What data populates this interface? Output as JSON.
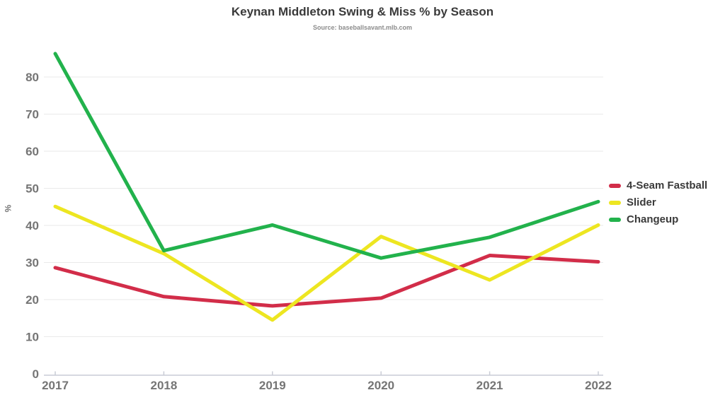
{
  "chart_data": {
    "type": "line",
    "title": "Keynan Middleton Swing & Miss % by Season",
    "subtitle": "Source: baseballsavant.mlb.com",
    "xlabel": "",
    "ylabel": "%",
    "categories": [
      "2017",
      "2018",
      "2019",
      "2020",
      "2021",
      "2022"
    ],
    "series": [
      {
        "name": "4-Seam Fastball",
        "color": "#d22d49",
        "values": [
          28.6,
          20.8,
          18.3,
          20.4,
          31.9,
          30.2
        ]
      },
      {
        "name": "Slider",
        "color": "#ede621",
        "values": [
          45.1,
          32.4,
          14.5,
          37.0,
          25.3,
          40.1
        ]
      },
      {
        "name": "Changeup",
        "color": "#22b24c",
        "values": [
          86.3,
          33.2,
          40.1,
          31.2,
          36.8,
          46.4
        ]
      }
    ],
    "yticks": [
      0,
      10,
      20,
      30,
      40,
      50,
      60,
      70,
      80
    ],
    "ylim": [
      0,
      90
    ],
    "grid": true,
    "legend_position": "right",
    "line_width": 5
  },
  "colors": {
    "gridline": "#e9e9e9",
    "axis_line": "#c9ccd6",
    "tick_mark": "#c9ccd6",
    "tick_text": "#757575"
  }
}
